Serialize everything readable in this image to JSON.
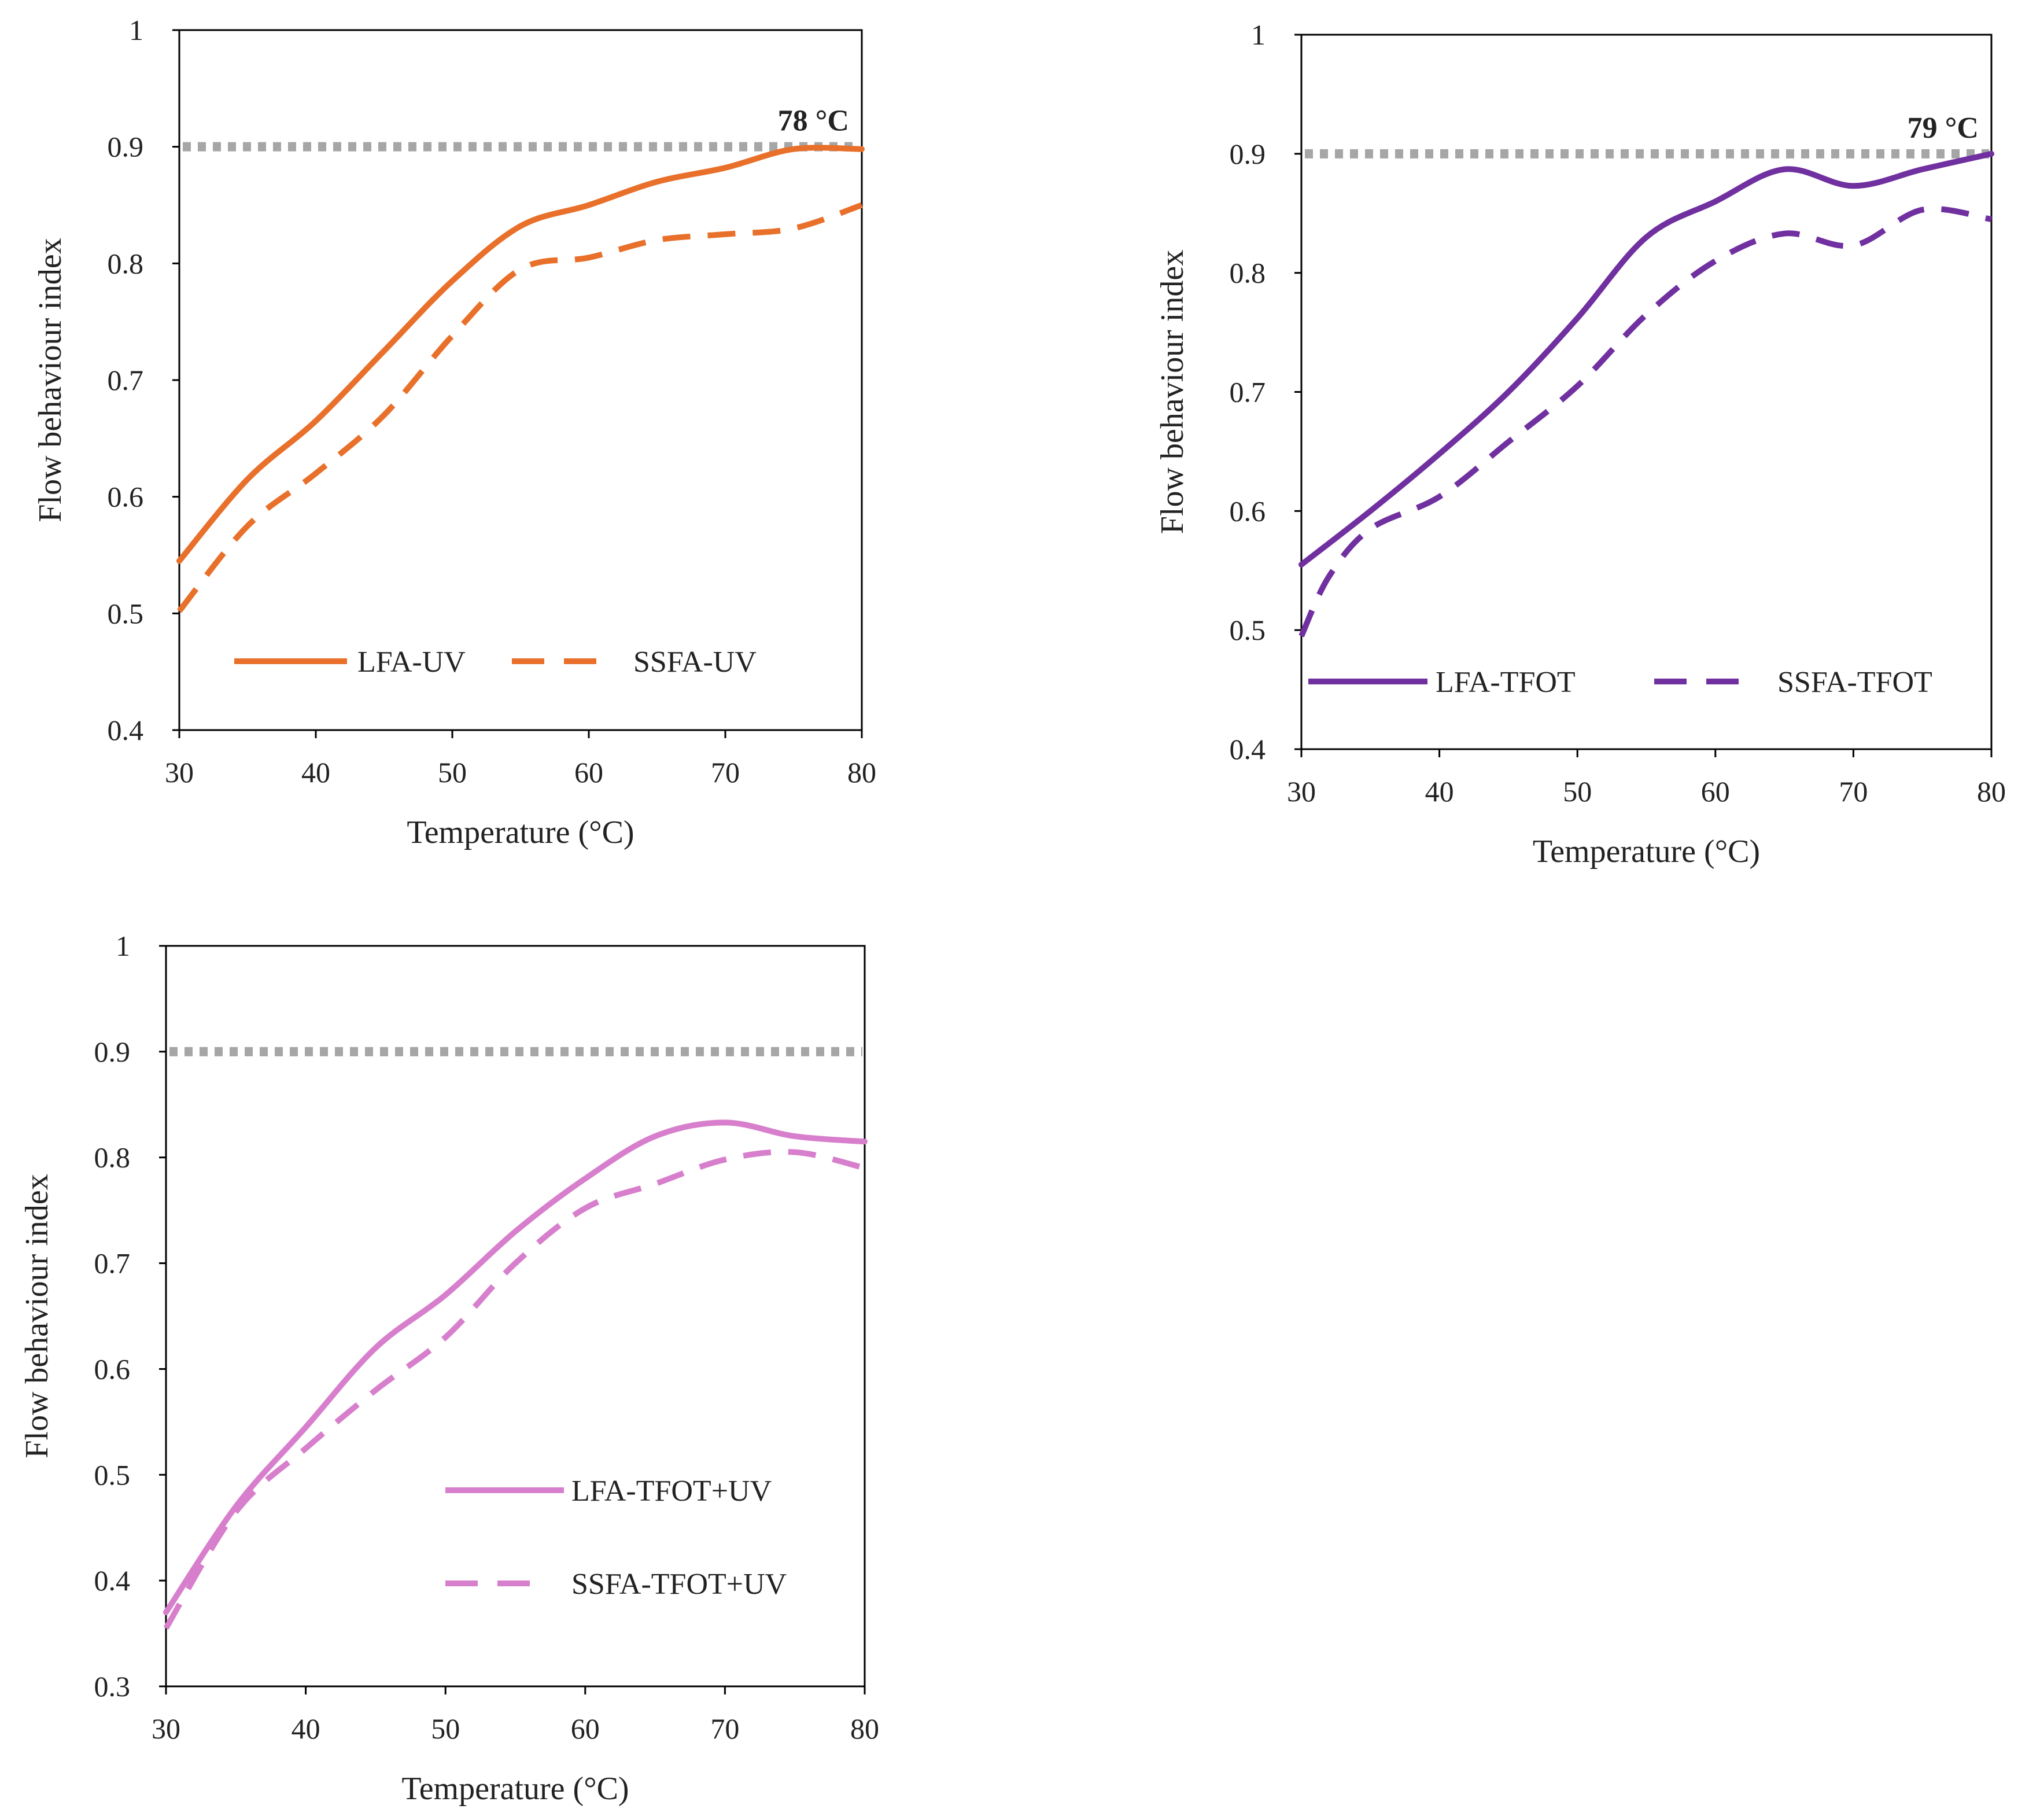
{
  "chart_data": [
    {
      "type": "line",
      "id": "uv",
      "title": "",
      "xlabel": "Temperature (°C)",
      "ylabel": "Flow behaviour index",
      "xlim": [
        30,
        80
      ],
      "ylim": [
        0.4,
        1
      ],
      "xticks": [
        "30",
        "40",
        "50",
        "60",
        "70",
        "80"
      ],
      "yticks": [
        "0.4",
        "0.5",
        "0.6",
        "0.7",
        "0.8",
        "0.9",
        "1"
      ],
      "grid": false,
      "legend": "bottom-left",
      "reference_line": {
        "y": 0.9,
        "style": "dotted",
        "color": "#a6a6a6"
      },
      "annotation": {
        "text": "78 °C",
        "x": 78,
        "y": 0.9
      },
      "series": [
        {
          "name": "LFA-UV",
          "style": "solid",
          "color": "#e8702a",
          "x": [
            30,
            35,
            40,
            45,
            50,
            55,
            60,
            65,
            70,
            75,
            80
          ],
          "y": [
            0.545,
            0.615,
            0.665,
            0.725,
            0.785,
            0.832,
            0.85,
            0.87,
            0.882,
            0.898,
            0.898
          ]
        },
        {
          "name": "SSFA-UV",
          "style": "dashed",
          "color": "#e8702a",
          "x": [
            30,
            35,
            40,
            45,
            50,
            55,
            60,
            65,
            70,
            75,
            80
          ],
          "y": [
            0.502,
            0.575,
            0.62,
            0.67,
            0.738,
            0.795,
            0.805,
            0.82,
            0.825,
            0.83,
            0.85
          ]
        }
      ]
    },
    {
      "type": "line",
      "id": "tfot",
      "title": "",
      "xlabel": "Temperature (°C)",
      "ylabel": "Flow behaviour index",
      "xlim": [
        30,
        80
      ],
      "ylim": [
        0.4,
        1
      ],
      "xticks": [
        "30",
        "40",
        "50",
        "60",
        "70",
        "80"
      ],
      "yticks": [
        "0.4",
        "0.5",
        "0.6",
        "0.7",
        "0.8",
        "0.9",
        "1"
      ],
      "grid": false,
      "legend": "bottom",
      "reference_line": {
        "y": 0.9,
        "style": "dotted",
        "color": "#a6a6a6"
      },
      "annotation": {
        "text": "79 °C",
        "x": 79,
        "y": 0.9
      },
      "series": [
        {
          "name": "LFA-TFOT",
          "style": "solid",
          "color": "#7030a0",
          "x": [
            30,
            35,
            40,
            45,
            50,
            55,
            60,
            65,
            70,
            75,
            80
          ],
          "y": [
            0.555,
            0.6,
            0.648,
            0.7,
            0.762,
            0.83,
            0.86,
            0.887,
            0.873,
            0.887,
            0.9
          ]
        },
        {
          "name": "SSFA-TFOT",
          "style": "dashed",
          "color": "#7030a0",
          "x": [
            30,
            32,
            35,
            40,
            45,
            50,
            55,
            60,
            65,
            70,
            75,
            80
          ],
          "y": [
            0.495,
            0.545,
            0.585,
            0.612,
            0.658,
            0.705,
            0.765,
            0.81,
            0.833,
            0.823,
            0.853,
            0.845
          ]
        }
      ]
    },
    {
      "type": "line",
      "id": "tfot-uv",
      "title": "",
      "xlabel": "Temperature (°C)",
      "ylabel": "Flow behaviour index",
      "xlim": [
        30,
        80
      ],
      "ylim": [
        0.3,
        1
      ],
      "xticks": [
        "30",
        "40",
        "50",
        "60",
        "70",
        "80"
      ],
      "yticks": [
        "0.3",
        "0.4",
        "0.5",
        "0.6",
        "0.7",
        "0.8",
        "0.9",
        "1"
      ],
      "grid": false,
      "legend": "bottom-right",
      "reference_line": {
        "y": 0.9,
        "style": "dotted",
        "color": "#a6a6a6"
      },
      "annotation": null,
      "series": [
        {
          "name": "LFA-TFOT+UV",
          "style": "solid",
          "color": "#d77fcc",
          "x": [
            30,
            35,
            40,
            45,
            50,
            55,
            60,
            65,
            70,
            75,
            80
          ],
          "y": [
            0.37,
            0.47,
            0.545,
            0.62,
            0.67,
            0.73,
            0.78,
            0.82,
            0.833,
            0.82,
            0.815
          ]
        },
        {
          "name": "SSFA-TFOT+UV",
          "style": "dashed",
          "color": "#d77fcc",
          "x": [
            30,
            35,
            40,
            45,
            50,
            55,
            60,
            65,
            70,
            75,
            80
          ],
          "y": [
            0.355,
            0.465,
            0.525,
            0.58,
            0.63,
            0.7,
            0.752,
            0.775,
            0.798,
            0.805,
            0.79
          ]
        }
      ]
    }
  ]
}
